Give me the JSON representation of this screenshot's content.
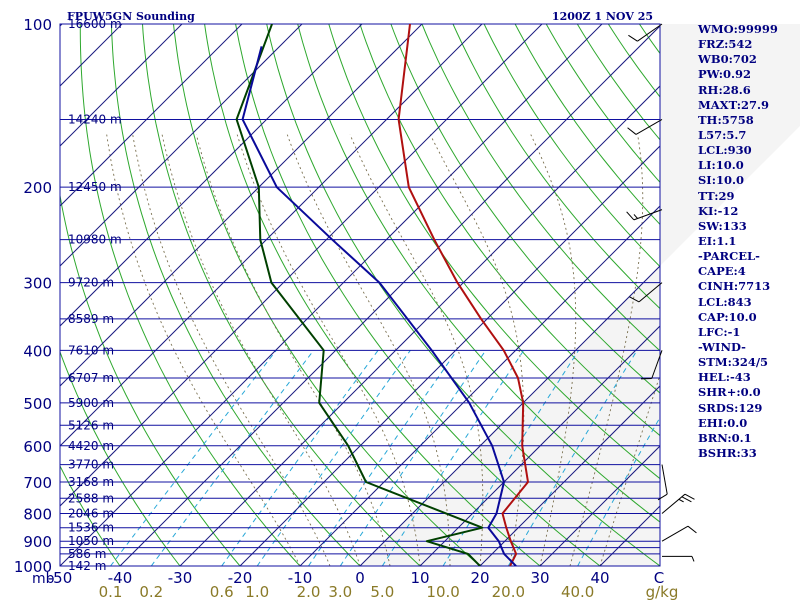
{
  "header": {
    "station": "FPUW5GN Sounding",
    "time": "1200Z  1 NOV 25"
  },
  "stats": [
    {
      "label": "WMO",
      "value": "99999"
    },
    {
      "label": "FRZ",
      "value": "542"
    },
    {
      "label": "WB0",
      "value": "702"
    },
    {
      "label": "PW",
      "value": "0.92"
    },
    {
      "label": "RH",
      "value": "28.6"
    },
    {
      "label": "MAXT",
      "value": "27.9"
    },
    {
      "label": "TH",
      "value": "5758"
    },
    {
      "label": "L57",
      "value": "5.7"
    },
    {
      "label": "LCL",
      "value": "930"
    },
    {
      "label": "LI",
      "value": "10.0"
    },
    {
      "label": "SI",
      "value": "10.0"
    },
    {
      "label": "TT",
      "value": "29"
    },
    {
      "label": "KI",
      "value": "-12"
    },
    {
      "label": "SW",
      "value": "133"
    },
    {
      "label": "EI",
      "value": "1.1"
    },
    {
      "label": "-PARCEL-",
      "value": ""
    },
    {
      "label": "CAPE",
      "value": "4"
    },
    {
      "label": "CINH",
      "value": "7713"
    },
    {
      "label": "LCL",
      "value": "843"
    },
    {
      "label": "CAP",
      "value": "10.0"
    },
    {
      "label": "LFC",
      "value": "-1"
    },
    {
      "label": "-WIND-",
      "value": ""
    },
    {
      "label": "STM",
      "value": "324/5"
    },
    {
      "label": "HEL",
      "value": "-43"
    },
    {
      "label": "SHR+",
      "value": "0.0"
    },
    {
      "label": "SRDS",
      "value": "129"
    },
    {
      "label": "EHI",
      "value": "0.0"
    },
    {
      "label": "BRN",
      "value": "0.1"
    },
    {
      "label": "BSHR",
      "value": "33"
    }
  ],
  "chart_data": {
    "type": "skew-t",
    "title": "FPUW5GN Sounding",
    "valid_time": "1200Z  1 NOV 25",
    "y_axis_unit": "mb",
    "x_axis_unit": "C",
    "mixing_ratio_unit": "g/kg",
    "pressure_range": [
      1000,
      100
    ],
    "temp_range": [
      -50,
      50
    ],
    "pressure_labels": [
      100,
      200,
      300,
      400,
      500,
      600,
      700,
      800,
      900,
      1000
    ],
    "pressure_levels": [
      100,
      150,
      200,
      250,
      300,
      350,
      400,
      450,
      500,
      550,
      600,
      650,
      700,
      750,
      800,
      850,
      900,
      925,
      950,
      1000
    ],
    "heights": [
      {
        "p": 100,
        "label": "16600 m"
      },
      {
        "p": 150,
        "label": "14240 m"
      },
      {
        "p": 200,
        "label": "12450 m"
      },
      {
        "p": 250,
        "label": "10980 m"
      },
      {
        "p": 300,
        "label": "9720 m"
      },
      {
        "p": 350,
        "label": "8589 m"
      },
      {
        "p": 400,
        "label": "7610 m"
      },
      {
        "p": 450,
        "label": "6707 m"
      },
      {
        "p": 500,
        "label": "5900 m"
      },
      {
        "p": 550,
        "label": "5126 m"
      },
      {
        "p": 600,
        "label": "4420 m"
      },
      {
        "p": 650,
        "label": "3770 m"
      },
      {
        "p": 700,
        "label": "3168 m"
      },
      {
        "p": 750,
        "label": "2588 m"
      },
      {
        "p": 800,
        "label": "2046 m"
      },
      {
        "p": 850,
        "label": "1536 m"
      },
      {
        "p": 900,
        "label": "1050 m"
      },
      {
        "p": 950,
        "label": "586 m"
      },
      {
        "p": 1000,
        "label": "142 m"
      }
    ],
    "temp_ticks": [
      -50,
      -40,
      -30,
      -20,
      -10,
      0,
      10,
      20,
      30,
      40
    ],
    "mixing_ratio_ticks": [
      0.1,
      0.2,
      0.6,
      1.0,
      2.0,
      3.0,
      5.0,
      10.0,
      20.0,
      40.0
    ],
    "mixing_ratio_labels": [
      "0.1",
      "0.2",
      "0.6",
      "1.0",
      "2.0",
      "3.0",
      "5.0",
      "10.0",
      "20.0",
      "40.0"
    ],
    "series": [
      {
        "name": "temperature",
        "color": "#b01010",
        "points": [
          {
            "p": 100,
            "t": -82
          },
          {
            "p": 150,
            "t": -68
          },
          {
            "p": 200,
            "t": -55
          },
          {
            "p": 250,
            "t": -42
          },
          {
            "p": 300,
            "t": -31
          },
          {
            "p": 350,
            "t": -21
          },
          {
            "p": 400,
            "t": -12
          },
          {
            "p": 450,
            "t": -5
          },
          {
            "p": 500,
            "t": 0
          },
          {
            "p": 600,
            "t": 7
          },
          {
            "p": 700,
            "t": 14
          },
          {
            "p": 800,
            "t": 15
          },
          {
            "p": 850,
            "t": 18
          },
          {
            "p": 900,
            "t": 21
          },
          {
            "p": 950,
            "t": 24
          },
          {
            "p": 1000,
            "t": 25
          }
        ]
      },
      {
        "name": "dewpoint",
        "color": "#004000",
        "points": [
          {
            "p": 100,
            "t": -105
          },
          {
            "p": 150,
            "t": -95
          },
          {
            "p": 200,
            "t": -80
          },
          {
            "p": 250,
            "t": -71
          },
          {
            "p": 300,
            "t": -62
          },
          {
            "p": 400,
            "t": -42
          },
          {
            "p": 500,
            "t": -34
          },
          {
            "p": 600,
            "t": -22
          },
          {
            "p": 700,
            "t": -13
          },
          {
            "p": 850,
            "t": 14
          },
          {
            "p": 900,
            "t": 7
          },
          {
            "p": 950,
            "t": 16
          },
          {
            "p": 1000,
            "t": 20
          }
        ]
      },
      {
        "name": "parcel",
        "color": "#0a0a9a",
        "points": [
          {
            "p": 110,
            "t": -103
          },
          {
            "p": 150,
            "t": -94
          },
          {
            "p": 200,
            "t": -77
          },
          {
            "p": 250,
            "t": -59
          },
          {
            "p": 300,
            "t": -44
          },
          {
            "p": 400,
            "t": -24
          },
          {
            "p": 500,
            "t": -9
          },
          {
            "p": 600,
            "t": 2
          },
          {
            "p": 700,
            "t": 10
          },
          {
            "p": 800,
            "t": 14
          },
          {
            "p": 850,
            "t": 15
          },
          {
            "p": 900,
            "t": 19
          },
          {
            "p": 950,
            "t": 22
          },
          {
            "p": 1000,
            "t": 26
          }
        ]
      }
    ],
    "wind_barbs": [
      {
        "p": 100,
        "dir": 235,
        "spd_kt": 10
      },
      {
        "p": 150,
        "dir": 240,
        "spd_kt": 10
      },
      {
        "p": 220,
        "dir": 250,
        "spd_kt": 15
      },
      {
        "p": 300,
        "dir": 230,
        "spd_kt": 10
      },
      {
        "p": 400,
        "dir": 200,
        "spd_kt": 10
      },
      {
        "p": 650,
        "dir": 170,
        "spd_kt": 10
      },
      {
        "p": 800,
        "dir": 50,
        "spd_kt": 25
      },
      {
        "p": 900,
        "dir": 60,
        "spd_kt": 10
      },
      {
        "p": 960,
        "dir": 90,
        "spd_kt": 5
      }
    ]
  }
}
